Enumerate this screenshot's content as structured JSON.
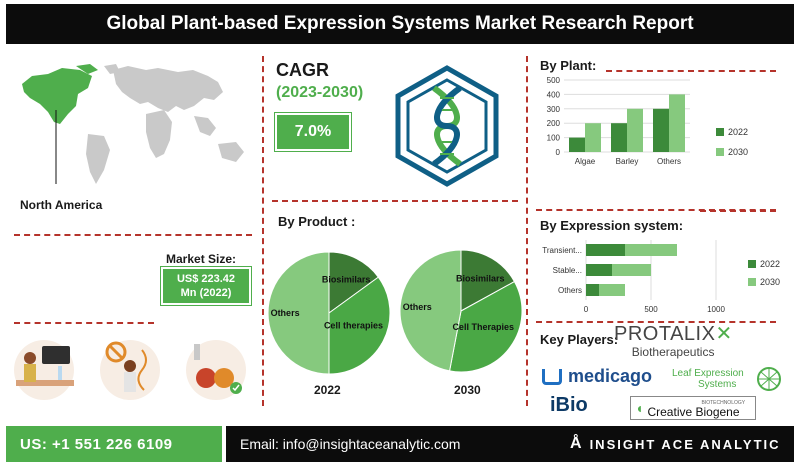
{
  "title": "Global Plant-based Expression Systems Market Research Report",
  "region": {
    "label": "North America"
  },
  "cagr": {
    "label": "CAGR",
    "period": "(2023-2030)",
    "value": "7.0%"
  },
  "market_size": {
    "label": "Market Size:",
    "value_line1": "US$ 223.42",
    "value_line2": "Mn (2022)"
  },
  "product": {
    "title": "By Product :",
    "year_a": "2022",
    "year_b": "2030",
    "pie_a_labels": {
      "biosimilars": "Biosimilars",
      "cell": "Cell therapies",
      "others": "Others"
    },
    "pie_b_labels": {
      "biosimilars": "Biosimilars",
      "cell": "Cell Therapies",
      "others": "Others"
    }
  },
  "key_players": {
    "label": "Key Players:",
    "protalix": "PROTALIX",
    "protalix_sub": "Biotherapeutics",
    "medicago": "medicago",
    "leaf_line1": "Leaf Expression",
    "leaf_line2": "Systems",
    "ibio": "iBio",
    "creative_sub": "BIOTECHNOLOGY",
    "creative": "Creative Biogene"
  },
  "footer": {
    "phone": "US: +1 551 226 6109",
    "email": "Email: info@insightaceanalytic.com",
    "brand": "INSIGHT ACE ANALYTIC"
  },
  "colors": {
    "dark_green": "#3c8a3a",
    "light_green": "#86c97e",
    "accent_red": "#b5332b",
    "brand_green": "#4fae4c"
  },
  "chart_data": [
    {
      "type": "bar",
      "title": "By Plant:",
      "categories": [
        "Algae",
        "Barley",
        "Others"
      ],
      "series": [
        {
          "name": "2022",
          "values": [
            100,
            200,
            300
          ]
        },
        {
          "name": "2030",
          "values": [
            200,
            300,
            400
          ]
        }
      ],
      "ylim": [
        0,
        500
      ],
      "yticks": [
        0,
        100,
        200,
        300,
        400,
        500
      ],
      "grid": true,
      "legend": "right"
    },
    {
      "type": "bar",
      "orientation": "horizontal",
      "stacked": true,
      "title": "By Expression system:",
      "categories": [
        "Transient...",
        "Stable...",
        "Others"
      ],
      "series": [
        {
          "name": "2022",
          "values": [
            300,
            200,
            100
          ]
        },
        {
          "name": "2030",
          "values": [
            400,
            300,
            200
          ]
        }
      ],
      "xlim": [
        0,
        1000
      ],
      "xticks": [
        0,
        500,
        1000
      ],
      "legend": "right"
    },
    {
      "type": "pie",
      "title": "2022",
      "slices": [
        {
          "label": "Biosimilars",
          "value": 15
        },
        {
          "label": "Cell therapies",
          "value": 35
        },
        {
          "label": "Others",
          "value": 50
        }
      ]
    },
    {
      "type": "pie",
      "title": "2030",
      "slices": [
        {
          "label": "Biosimilars",
          "value": 17
        },
        {
          "label": "Cell Therapies",
          "value": 36
        },
        {
          "label": "Others",
          "value": 47
        }
      ]
    }
  ]
}
